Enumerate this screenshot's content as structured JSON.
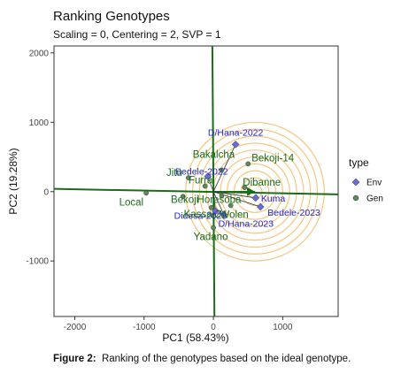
{
  "chart_data": {
    "type": "scatter",
    "title": "Ranking Genotypes",
    "subtitle": "Scaling = 0, Centering = 2, SVP = 1",
    "xlabel": "PC1 (58.43%)",
    "ylabel": "PC2 (19.28%)",
    "xlim": [
      -2300,
      1800
    ],
    "ylim": [
      -1800,
      2100
    ],
    "x_ticks": [
      -2000,
      -1000,
      0,
      1000
    ],
    "y_ticks": [
      -1000,
      0,
      1000,
      2000
    ],
    "x_tick_labels": [
      "-2000",
      "-1000",
      "0",
      "1000"
    ],
    "y_tick_labels": [
      "-1000",
      "0",
      "1000",
      "2000"
    ],
    "legend": {
      "title": "type",
      "position": "right",
      "items": [
        {
          "label": "Env",
          "color": "#6a6adb",
          "shape": "diamond"
        },
        {
          "label": "Gen",
          "color": "#5b8c5a",
          "shape": "circle"
        }
      ]
    },
    "ideal_point": {
      "x": 600,
      "y": 0
    },
    "concentric_circle_radii": [
      100,
      200,
      300,
      400,
      500,
      600,
      700,
      800,
      900,
      1000
    ],
    "colors": {
      "env_text": "#2222cc",
      "gen_text": "#1a6b1a",
      "axis_line": "#1a6b1a",
      "circles": "#f5c77e"
    },
    "series": [
      {
        "name": "Env",
        "points": [
          {
            "label": "D/Hana-2022",
            "x": 320,
            "y": 680
          },
          {
            "label": "Bedele-2022",
            "x": -80,
            "y": 220
          },
          {
            "label": "Bedele-2023",
            "x": 680,
            "y": -220
          },
          {
            "label": "D/Hana-2023",
            "x": 150,
            "y": -330
          },
          {
            "label": "Didesa-2023",
            "x": 30,
            "y": -280
          },
          {
            "label": "Kuma",
            "x": 610,
            "y": -90
          }
        ]
      },
      {
        "name": "Gen",
        "points": [
          {
            "label": "Bakalcha",
            "x": 120,
            "y": 310
          },
          {
            "label": "Jitu",
            "x": -360,
            "y": 200
          },
          {
            "label": "Bekoji-14",
            "x": 500,
            "y": 400
          },
          {
            "label": "Furra",
            "x": -120,
            "y": 80
          },
          {
            "label": "Dibanne",
            "x": 450,
            "y": 60
          },
          {
            "label": "Local",
            "x": -970,
            "y": -20
          },
          {
            "label": "Bekoji",
            "x": -440,
            "y": -70
          },
          {
            "label": "Horesoba",
            "x": 120,
            "y": -60
          },
          {
            "label": "Kassa-2",
            "x": -30,
            "y": -230
          },
          {
            "label": "Wolen",
            "x": 250,
            "y": -200
          },
          {
            "label": "Yadano",
            "x": 0,
            "y": -520
          }
        ]
      }
    ]
  }
}
